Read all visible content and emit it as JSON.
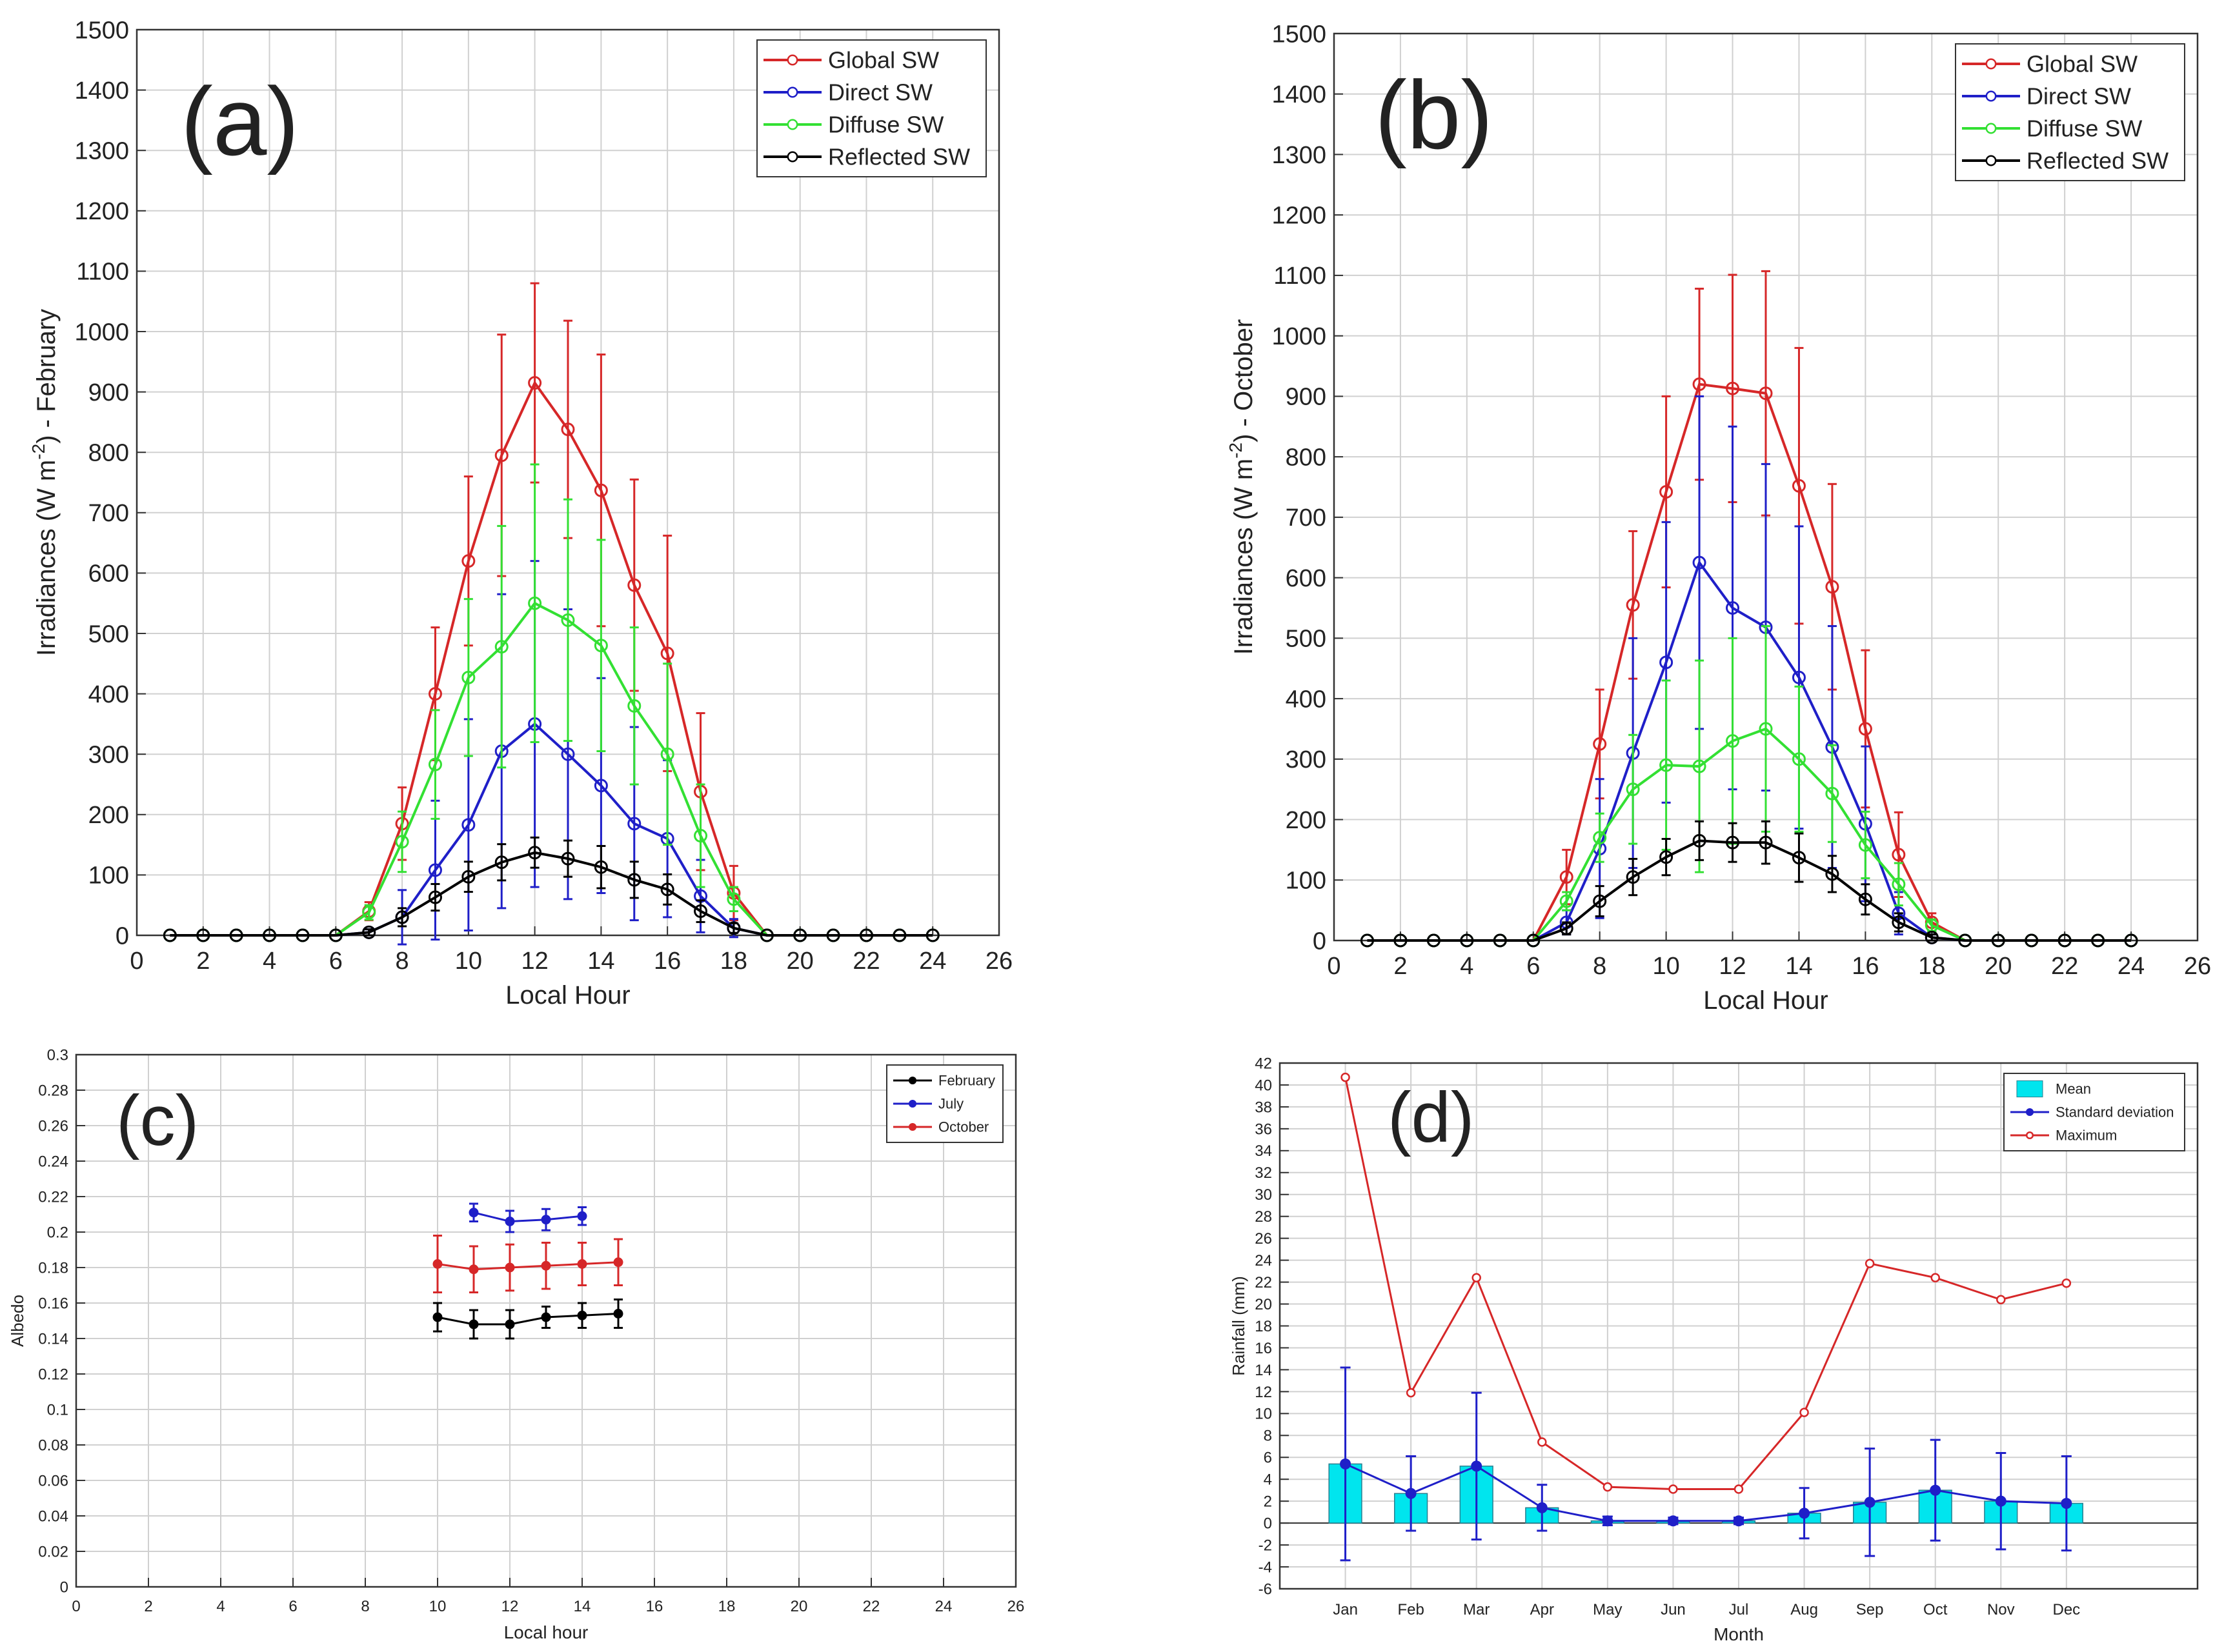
{
  "chart_data": [
    {
      "id": "a",
      "type": "line",
      "panel_label": "(a)",
      "xlabel": "Local Hour",
      "ylabel": "Irradiances (W m-2) - February",
      "ylabel_pre": "Irradiances (W m",
      "ylabel_sup": "-2",
      "ylabel_post": ") - February",
      "xlim": [
        0,
        26
      ],
      "ylim": [
        0,
        1500
      ],
      "xticks": [
        0,
        2,
        4,
        6,
        8,
        10,
        12,
        14,
        16,
        18,
        20,
        22,
        24,
        26
      ],
      "yticks": [
        0,
        100,
        200,
        300,
        400,
        500,
        600,
        700,
        800,
        900,
        1000,
        1100,
        1200,
        1300,
        1400,
        1500
      ],
      "grid": true,
      "legend_position": "top-right",
      "series": [
        {
          "name": "Global SW",
          "color": "#d62728",
          "x": [
            1,
            2,
            3,
            4,
            5,
            6,
            7,
            8,
            9,
            10,
            11,
            12,
            13,
            14,
            15,
            16,
            17,
            18,
            19,
            20,
            21,
            22,
            23,
            24
          ],
          "y": [
            0,
            0,
            0,
            0,
            0,
            0,
            40,
            185,
            400,
            620,
            795,
            915,
            838,
            737,
            580,
            467,
            238,
            70,
            0,
            0,
            0,
            0,
            0,
            0
          ],
          "err": [
            0,
            0,
            0,
            0,
            0,
            0,
            15,
            60,
            110,
            140,
            200,
            165,
            180,
            225,
            175,
            195,
            130,
            45,
            0,
            0,
            0,
            0,
            0,
            0
          ]
        },
        {
          "name": "Direct SW",
          "color": "#1f1fc8",
          "x": [
            1,
            2,
            3,
            4,
            5,
            6,
            7,
            8,
            9,
            10,
            11,
            12,
            13,
            14,
            15,
            16,
            17,
            18,
            19,
            20,
            21,
            22,
            23,
            24
          ],
          "y": [
            0,
            0,
            0,
            0,
            0,
            0,
            5,
            30,
            108,
            183,
            305,
            350,
            300,
            248,
            185,
            160,
            65,
            12,
            0,
            0,
            0,
            0,
            0,
            0
          ],
          "err": [
            0,
            0,
            0,
            0,
            0,
            0,
            5,
            45,
            115,
            175,
            260,
            270,
            240,
            178,
            160,
            130,
            60,
            15,
            0,
            0,
            0,
            0,
            0,
            0
          ]
        },
        {
          "name": "Diffuse SW",
          "color": "#33e033",
          "x": [
            1,
            2,
            3,
            4,
            5,
            6,
            7,
            8,
            9,
            10,
            11,
            12,
            13,
            14,
            15,
            16,
            17,
            18,
            19,
            20,
            21,
            22,
            23,
            24
          ],
          "y": [
            0,
            0,
            0,
            0,
            0,
            0,
            38,
            155,
            283,
            427,
            478,
            550,
            522,
            480,
            380,
            300,
            165,
            60,
            0,
            0,
            0,
            0,
            0,
            0
          ],
          "err": [
            0,
            0,
            0,
            0,
            0,
            0,
            12,
            50,
            90,
            130,
            200,
            230,
            200,
            175,
            130,
            150,
            85,
            20,
            0,
            0,
            0,
            0,
            0,
            0
          ]
        },
        {
          "name": "Reflected SW",
          "color": "#000000",
          "x": [
            1,
            2,
            3,
            4,
            5,
            6,
            7,
            8,
            9,
            10,
            11,
            12,
            13,
            14,
            15,
            16,
            17,
            18,
            19,
            20,
            21,
            22,
            23,
            24
          ],
          "y": [
            0,
            0,
            0,
            0,
            0,
            0,
            5,
            30,
            63,
            97,
            121,
            137,
            127,
            113,
            92,
            76,
            40,
            12,
            0,
            0,
            0,
            0,
            0,
            0
          ],
          "err": [
            0,
            0,
            0,
            0,
            0,
            0,
            5,
            15,
            22,
            25,
            30,
            25,
            30,
            35,
            30,
            25,
            18,
            8,
            0,
            0,
            0,
            0,
            0,
            0
          ]
        }
      ]
    },
    {
      "id": "b",
      "type": "line",
      "panel_label": "(b)",
      "xlabel": "Local Hour",
      "ylabel": "Irradiances (W m-2) - October",
      "ylabel_pre": "Irradiances (W m",
      "ylabel_sup": "-2",
      "ylabel_post": ") - October",
      "xlim": [
        0,
        26
      ],
      "ylim": [
        0,
        1500
      ],
      "xticks": [
        0,
        2,
        4,
        6,
        8,
        10,
        12,
        14,
        16,
        18,
        20,
        22,
        24,
        26
      ],
      "yticks": [
        0,
        100,
        200,
        300,
        400,
        500,
        600,
        700,
        800,
        900,
        1000,
        1100,
        1200,
        1300,
        1400,
        1500
      ],
      "grid": true,
      "legend_position": "top-right",
      "series": [
        {
          "name": "Global SW",
          "color": "#d62728",
          "x": [
            1,
            2,
            3,
            4,
            5,
            6,
            7,
            8,
            9,
            10,
            11,
            12,
            13,
            14,
            15,
            16,
            17,
            18,
            19,
            20,
            21,
            22,
            23,
            24
          ],
          "y": [
            0,
            0,
            0,
            0,
            0,
            0,
            105,
            325,
            555,
            742,
            920,
            913,
            905,
            752,
            585,
            350,
            142,
            30,
            0,
            0,
            0,
            0,
            0,
            0
          ],
          "err": [
            0,
            0,
            0,
            0,
            0,
            0,
            45,
            90,
            122,
            158,
            158,
            188,
            202,
            228,
            170,
            130,
            70,
            15,
            0,
            0,
            0,
            0,
            0,
            0
          ]
        },
        {
          "name": "Direct SW",
          "color": "#1f1fc8",
          "x": [
            1,
            2,
            3,
            4,
            5,
            6,
            7,
            8,
            9,
            10,
            11,
            12,
            13,
            14,
            15,
            16,
            17,
            18,
            19,
            20,
            21,
            22,
            23,
            24
          ],
          "y": [
            0,
            0,
            0,
            0,
            0,
            0,
            30,
            152,
            310,
            460,
            625,
            550,
            518,
            435,
            320,
            193,
            45,
            5,
            0,
            0,
            0,
            0,
            0,
            0
          ],
          "err": [
            0,
            0,
            0,
            0,
            0,
            0,
            20,
            115,
            190,
            232,
            275,
            300,
            270,
            250,
            200,
            128,
            35,
            5,
            0,
            0,
            0,
            0,
            0,
            0
          ]
        },
        {
          "name": "Diffuse SW",
          "color": "#33e033",
          "x": [
            1,
            2,
            3,
            4,
            5,
            6,
            7,
            8,
            9,
            10,
            11,
            12,
            13,
            14,
            15,
            16,
            17,
            18,
            19,
            20,
            21,
            22,
            23,
            24
          ],
          "y": [
            0,
            0,
            0,
            0,
            0,
            0,
            65,
            170,
            250,
            290,
            288,
            330,
            350,
            300,
            243,
            158,
            93,
            25,
            0,
            0,
            0,
            0,
            0,
            0
          ],
          "err": [
            0,
            0,
            0,
            0,
            0,
            0,
            15,
            40,
            90,
            140,
            175,
            170,
            170,
            120,
            80,
            55,
            35,
            10,
            0,
            0,
            0,
            0,
            0,
            0
          ]
        },
        {
          "name": "Reflected SW",
          "color": "#000000",
          "x": [
            1,
            2,
            3,
            4,
            5,
            6,
            7,
            8,
            9,
            10,
            11,
            12,
            13,
            14,
            15,
            16,
            17,
            18,
            19,
            20,
            21,
            22,
            23,
            24
          ],
          "y": [
            0,
            0,
            0,
            0,
            0,
            0,
            20,
            65,
            105,
            138,
            165,
            162,
            162,
            137,
            110,
            68,
            30,
            5,
            0,
            0,
            0,
            0,
            0,
            0
          ],
          "err": [
            0,
            0,
            0,
            0,
            0,
            0,
            10,
            25,
            30,
            30,
            32,
            32,
            35,
            40,
            30,
            25,
            15,
            5,
            0,
            0,
            0,
            0,
            0,
            0
          ]
        }
      ]
    },
    {
      "id": "c",
      "type": "line",
      "panel_label": "(c)",
      "xlabel": "Local hour",
      "ylabel": "Albedo",
      "xlim": [
        0,
        26
      ],
      "ylim": [
        0,
        0.3
      ],
      "xticks": [
        0,
        2,
        4,
        6,
        8,
        10,
        12,
        14,
        16,
        18,
        20,
        22,
        24,
        26
      ],
      "yticks": [
        0,
        0.02,
        0.04,
        0.06,
        0.08,
        0.1,
        0.12,
        0.14,
        0.16,
        0.18,
        0.2,
        0.22,
        0.24,
        0.26,
        0.28,
        0.3
      ],
      "grid": true,
      "legend_position": "top-right",
      "series": [
        {
          "name": "February",
          "color": "#000000",
          "x": [
            10,
            11,
            12,
            13,
            14,
            15
          ],
          "y": [
            0.152,
            0.148,
            0.148,
            0.152,
            0.153,
            0.154
          ],
          "err": [
            0.008,
            0.008,
            0.008,
            0.006,
            0.007,
            0.008
          ]
        },
        {
          "name": "July",
          "color": "#1f1fc8",
          "x": [
            11,
            12,
            13,
            14
          ],
          "y": [
            0.211,
            0.206,
            0.207,
            0.209
          ],
          "err": [
            0.005,
            0.006,
            0.006,
            0.005
          ]
        },
        {
          "name": "October",
          "color": "#d62728",
          "x": [
            10,
            11,
            12,
            13,
            14,
            15
          ],
          "y": [
            0.182,
            0.179,
            0.18,
            0.181,
            0.182,
            0.183
          ],
          "err": [
            0.016,
            0.013,
            0.013,
            0.013,
            0.012,
            0.013
          ]
        }
      ]
    },
    {
      "id": "d",
      "type": "bar",
      "panel_label": "(d)",
      "xlabel": "Month",
      "ylabel": "Rainfall (mm)",
      "categories": [
        "Jan",
        "Feb",
        "Mar",
        "Apr",
        "May",
        "Jun",
        "Jul",
        "Aug",
        "Sep",
        "Oct",
        "Nov",
        "Dec"
      ],
      "ylim": [
        -6,
        42
      ],
      "yticks": [
        -6,
        -4,
        -2,
        0,
        2,
        4,
        6,
        8,
        10,
        12,
        14,
        16,
        18,
        20,
        22,
        24,
        26,
        28,
        30,
        32,
        34,
        36,
        38,
        40,
        42
      ],
      "grid": true,
      "legend_position": "top-right",
      "series": [
        {
          "name": "Mean",
          "color": "#00e5ee",
          "values": [
            5.4,
            2.7,
            5.2,
            1.4,
            0.2,
            0.2,
            0.2,
            0.9,
            1.9,
            3.0,
            2.0,
            1.8
          ]
        },
        {
          "name": "Standard deviation",
          "color": "#1f1fc8",
          "values": [
            5.4,
            2.7,
            5.2,
            1.4,
            0.2,
            0.2,
            0.2,
            0.9,
            1.9,
            3.0,
            2.0,
            1.8
          ],
          "err": [
            8.8,
            3.4,
            6.7,
            2.1,
            0.4,
            0.3,
            0.3,
            2.3,
            4.9,
            4.6,
            4.4,
            4.3
          ]
        },
        {
          "name": "Maximum",
          "color": "#d62728",
          "values": [
            40.7,
            11.9,
            22.4,
            7.4,
            3.3,
            3.1,
            3.1,
            10.1,
            23.7,
            22.4,
            20.4,
            21.9
          ]
        }
      ]
    }
  ]
}
